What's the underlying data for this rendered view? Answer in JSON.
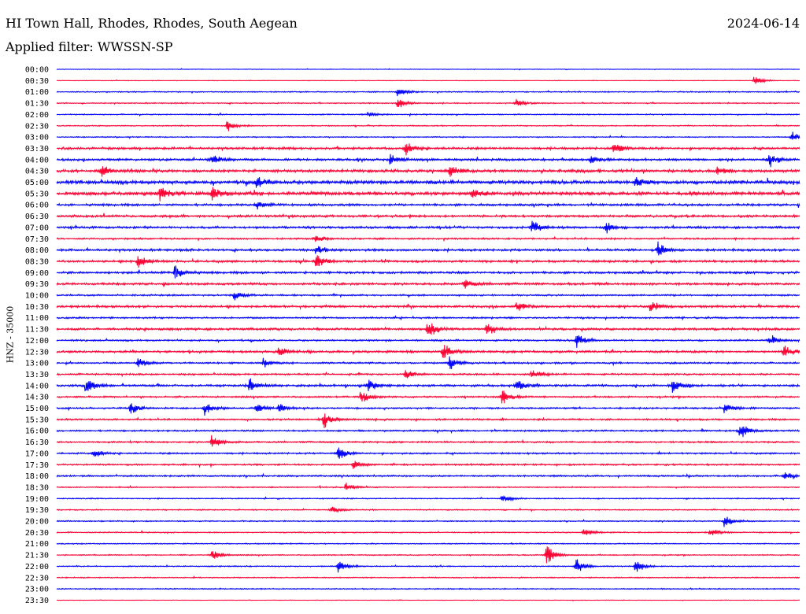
{
  "header": {
    "station": "HI Town Hall, Rhodes, Rhodes, South Aegean",
    "date": "2024-06-14",
    "filter": "Applied filter: WWSSN-SP"
  },
  "chart_data": {
    "type": "line",
    "title": "HI Town Hall, Rhodes, Rhodes, South Aegean",
    "ylabel": "HNZ - 35000",
    "xlabel": "",
    "trace_colors": [
      "#0000ff",
      "#ff0033"
    ],
    "row_labels": [
      "00:00",
      "00:30",
      "01:00",
      "01:30",
      "02:00",
      "02:30",
      "03:00",
      "03:30",
      "04:00",
      "04:30",
      "05:00",
      "05:30",
      "06:00",
      "06:30",
      "07:00",
      "07:30",
      "08:00",
      "08:30",
      "09:00",
      "09:30",
      "10:00",
      "10:30",
      "11:00",
      "11:30",
      "12:00",
      "12:30",
      "13:00",
      "13:30",
      "14:00",
      "14:30",
      "15:00",
      "15:30",
      "16:00",
      "16:30",
      "17:00",
      "17:30",
      "18:00",
      "18:30",
      "19:00",
      "19:30",
      "20:00",
      "20:30",
      "21:00",
      "21:30",
      "22:00",
      "22:30",
      "23:00",
      "23:30"
    ],
    "noise_level": [
      1,
      1,
      2,
      2,
      2,
      2,
      2,
      4,
      4,
      5,
      6,
      6,
      4,
      4,
      4,
      3,
      4,
      4,
      4,
      4,
      3,
      4,
      3,
      4,
      3,
      4,
      3,
      3,
      4,
      3,
      3,
      3,
      3,
      3,
      3,
      3,
      3,
      2,
      2,
      2,
      2,
      2,
      2,
      2,
      2,
      2,
      2,
      1
    ],
    "bursts": [
      [],
      [
        [
          0.94,
          6
        ]
      ],
      [
        [
          0.46,
          6
        ]
      ],
      [
        [
          0.46,
          7
        ],
        [
          0.62,
          6
        ]
      ],
      [
        [
          0.42,
          3
        ]
      ],
      [
        [
          0.23,
          7
        ]
      ],
      [
        [
          0.99,
          7
        ]
      ],
      [
        [
          0.47,
          9
        ],
        [
          0.75,
          8
        ]
      ],
      [
        [
          0.21,
          7
        ],
        [
          0.45,
          7
        ],
        [
          0.72,
          6
        ],
        [
          0.96,
          9
        ]
      ],
      [
        [
          0.06,
          9
        ],
        [
          0.53,
          8
        ],
        [
          0.89,
          6
        ]
      ],
      [
        [
          0.27,
          8
        ],
        [
          0.78,
          8
        ]
      ],
      [
        [
          0.14,
          8
        ],
        [
          0.21,
          9
        ],
        [
          0.56,
          7
        ]
      ],
      [
        [
          0.27,
          6
        ]
      ],
      [],
      [
        [
          0.64,
          9
        ],
        [
          0.74,
          7
        ]
      ],
      [
        [
          0.35,
          6
        ]
      ],
      [
        [
          0.35,
          6
        ],
        [
          0.81,
          9
        ]
      ],
      [
        [
          0.11,
          9
        ],
        [
          0.35,
          9
        ]
      ],
      [
        [
          0.16,
          9
        ]
      ],
      [
        [
          0.55,
          7
        ]
      ],
      [
        [
          0.24,
          6
        ]
      ],
      [
        [
          0.62,
          7
        ],
        [
          0.8,
          7
        ]
      ],
      [],
      [
        [
          0.5,
          12
        ],
        [
          0.58,
          8
        ]
      ],
      [
        [
          0.7,
          10
        ],
        [
          0.96,
          6
        ]
      ],
      [
        [
          0.3,
          7
        ],
        [
          0.52,
          11
        ],
        [
          0.98,
          8
        ]
      ],
      [
        [
          0.11,
          8
        ],
        [
          0.28,
          6
        ],
        [
          0.53,
          8
        ]
      ],
      [
        [
          0.47,
          6
        ],
        [
          0.64,
          6
        ]
      ],
      [
        [
          0.04,
          10
        ],
        [
          0.26,
          8
        ],
        [
          0.42,
          8
        ],
        [
          0.62,
          10
        ],
        [
          0.83,
          10
        ]
      ],
      [
        [
          0.41,
          8
        ],
        [
          0.6,
          10
        ]
      ],
      [
        [
          0.1,
          8
        ],
        [
          0.2,
          9
        ],
        [
          0.27,
          7
        ],
        [
          0.3,
          6
        ],
        [
          0.9,
          8
        ]
      ],
      [
        [
          0.36,
          11
        ]
      ],
      [
        [
          0.92,
          11
        ]
      ],
      [
        [
          0.21,
          10
        ]
      ],
      [
        [
          0.05,
          6
        ],
        [
          0.38,
          9
        ]
      ],
      [
        [
          0.4,
          6
        ]
      ],
      [
        [
          0.98,
          5
        ]
      ],
      [
        [
          0.39,
          5
        ]
      ],
      [
        [
          0.6,
          6
        ]
      ],
      [
        [
          0.37,
          5
        ]
      ],
      [
        [
          0.9,
          10
        ]
      ],
      [
        [
          0.71,
          6
        ],
        [
          0.88,
          6
        ]
      ],
      [],
      [
        [
          0.21,
          8
        ],
        [
          0.66,
          16
        ]
      ],
      [
        [
          0.38,
          9
        ],
        [
          0.7,
          10
        ],
        [
          0.78,
          9
        ]
      ],
      [],
      [],
      []
    ]
  }
}
